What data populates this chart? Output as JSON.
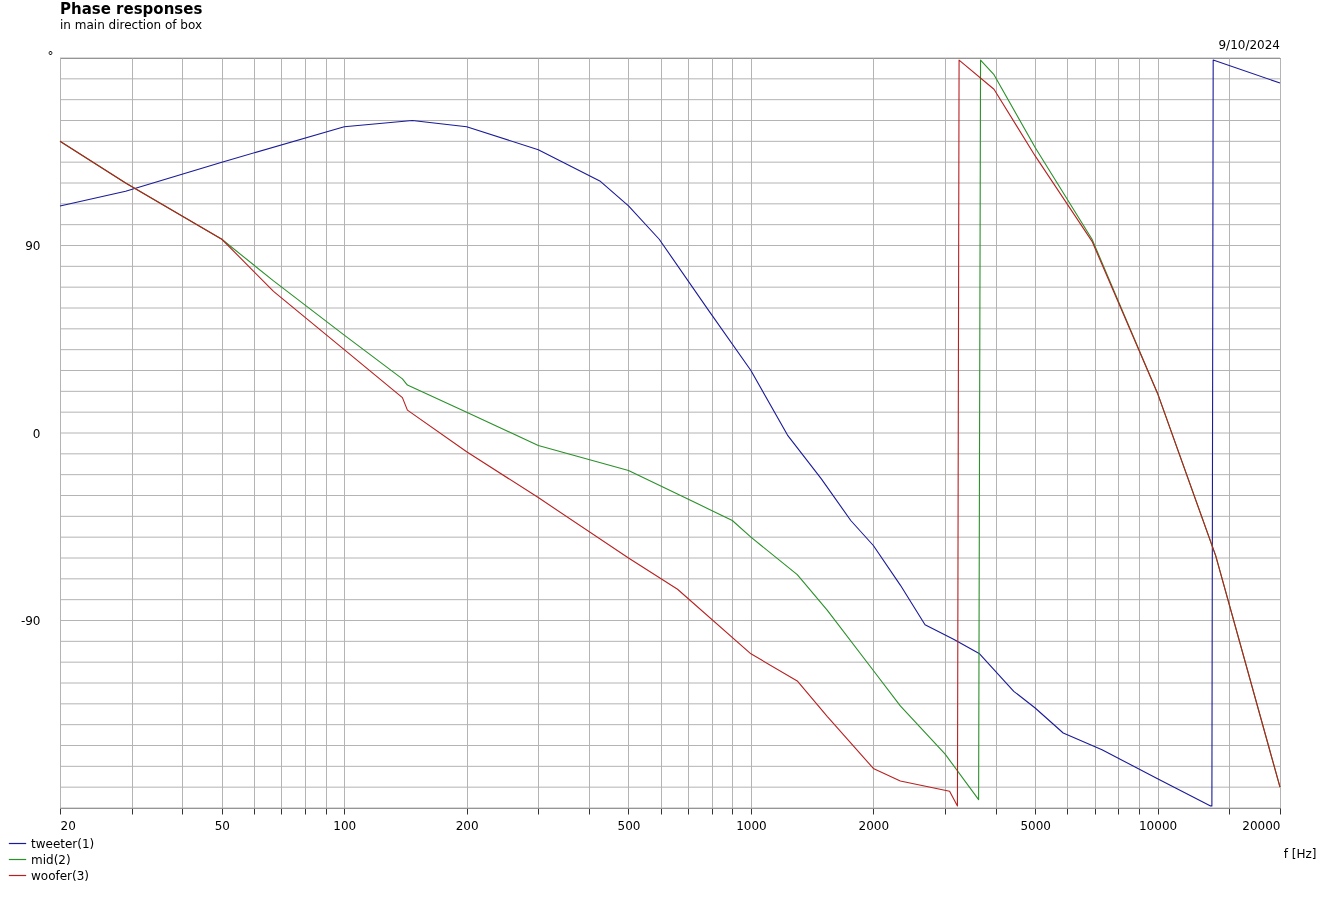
{
  "chart_data": {
    "type": "line",
    "title": "Phase responses",
    "subtitle": "in main direction of box",
    "xlabel": "f [Hz]",
    "ylabel": "°",
    "annotations": [
      "9/10/2024"
    ],
    "log": "x",
    "grid": true,
    "legend": "bottom left",
    "marker": "none",
    "line_style": "solid",
    "xlim": [
      20,
      20000
    ],
    "ylim": [
      -180,
      180
    ],
    "xticks": [
      20,
      {
        "value": 30,
        "label": null
      },
      {
        "value": 40,
        "label": null
      },
      50,
      {
        "value": 60,
        "label": null
      },
      {
        "value": 70,
        "label": null
      },
      {
        "value": 80,
        "label": null
      },
      {
        "value": 90,
        "label": null
      },
      100,
      200,
      {
        "value": 300,
        "label": null
      },
      {
        "value": 400,
        "label": null
      },
      500,
      {
        "value": 600,
        "label": null
      },
      {
        "value": 700,
        "label": null
      },
      {
        "value": 800,
        "label": null
      },
      {
        "value": 900,
        "label": null
      },
      1000,
      2000,
      {
        "value": 3000,
        "label": null
      },
      {
        "value": 4000,
        "label": null
      },
      5000,
      {
        "value": 6000,
        "label": null
      },
      {
        "value": 7000,
        "label": null
      },
      {
        "value": 8000,
        "label": null
      },
      {
        "value": 9000,
        "label": null
      },
      10000,
      {
        "value": 15000,
        "label": null
      },
      20000
    ],
    "yticks": [
      {
        "value": -180,
        "label": null
      },
      {
        "value": -170,
        "label": null
      },
      {
        "value": -160,
        "label": null
      },
      {
        "value": -150,
        "label": null
      },
      {
        "value": -140,
        "label": null
      },
      {
        "value": -130,
        "label": null
      },
      {
        "value": -120,
        "label": null
      },
      {
        "value": -110,
        "label": null
      },
      {
        "value": -100,
        "label": null
      },
      -90,
      {
        "value": -80,
        "label": null
      },
      {
        "value": -70,
        "label": null
      },
      {
        "value": -60,
        "label": null
      },
      {
        "value": -50,
        "label": null
      },
      {
        "value": -40,
        "label": null
      },
      {
        "value": -30,
        "label": null
      },
      {
        "value": -20,
        "label": null
      },
      {
        "value": -10,
        "label": null
      },
      0,
      {
        "value": 10,
        "label": null
      },
      {
        "value": 20,
        "label": null
      },
      {
        "value": 30,
        "label": null
      },
      {
        "value": 40,
        "label": null
      },
      {
        "value": 50,
        "label": null
      },
      {
        "value": 60,
        "label": null
      },
      {
        "value": 70,
        "label": null
      },
      {
        "value": 80,
        "label": null
      },
      90,
      {
        "value": 100,
        "label": null
      },
      {
        "value": 110,
        "label": null
      },
      {
        "value": 120,
        "label": null
      },
      {
        "value": 130,
        "label": null
      },
      {
        "value": 140,
        "label": null
      },
      {
        "value": 150,
        "label": null
      },
      {
        "value": 160,
        "label": null
      },
      {
        "value": 170,
        "label": null
      },
      {
        "value": 180,
        "label": null
      }
    ],
    "series": [
      {
        "name": "tweeter(1)",
        "color": "#1a1a9a",
        "x": [
          20,
          29,
          50,
          100,
          147,
          200,
          300,
          425,
          500,
          595,
          786,
          1000,
          1230,
          1490,
          1760,
          2000,
          2330,
          2680,
          3150,
          3650,
          4430,
          5000,
          5860,
          7300,
          10000,
          13500,
          13600,
          13700,
          20000
        ],
        "values": [
          109,
          116,
          130,
          147,
          150,
          147,
          136,
          121,
          109,
          93,
          59,
          30,
          -1,
          -22,
          -42,
          -54,
          -73,
          -92,
          -99,
          -106,
          -124,
          -132,
          -144,
          -152,
          -166,
          -179,
          -179,
          179,
          168
        ]
      },
      {
        "name": "mid(2)",
        "color": "#2a902a",
        "x": [
          20,
          29,
          50,
          67,
          100,
          139,
          143,
          200,
          300,
          500,
          740,
          900,
          1000,
          1300,
          1540,
          2000,
          2330,
          3000,
          3630,
          3670,
          3960,
          5000,
          6900,
          10000,
          13900,
          20000
        ],
        "values": [
          140,
          120,
          93,
          73,
          47,
          26,
          23,
          10,
          -6,
          -18,
          -34,
          -42,
          -50,
          -68,
          -85,
          -114,
          -131,
          -154,
          -176,
          179,
          172,
          137,
          93,
          19,
          -59,
          -170
        ]
      },
      {
        "name": "woofer(3)",
        "color": "#b82020",
        "x": [
          20,
          29,
          50,
          67,
          100,
          139,
          143,
          200,
          300,
          500,
          660,
          1000,
          1300,
          1540,
          2000,
          2330,
          3080,
          3220,
          3250,
          3960,
          5000,
          6900,
          10000,
          13900,
          20000
        ],
        "values": [
          140,
          120,
          93,
          68,
          40,
          17,
          11,
          -9,
          -31,
          -60,
          -75,
          -106,
          -119,
          -136,
          -161,
          -167,
          -172,
          -179,
          179,
          165,
          133,
          92,
          19,
          -59,
          -170
        ]
      }
    ]
  }
}
